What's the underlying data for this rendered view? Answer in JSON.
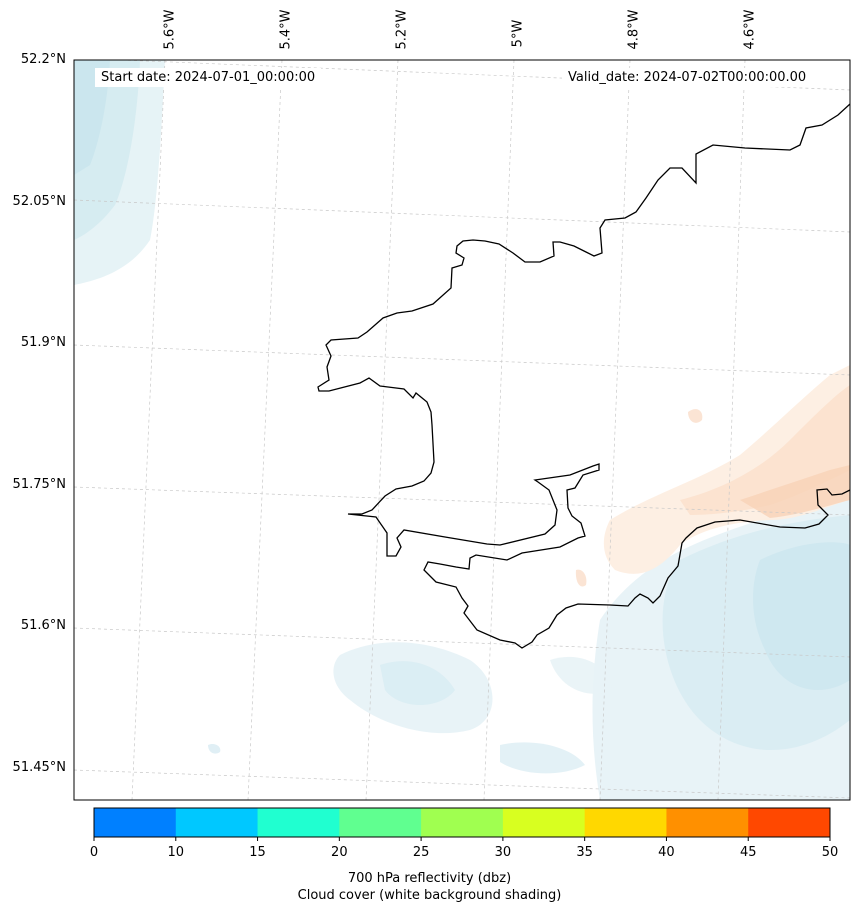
{
  "map": {
    "start_date": "Start date: 2024-07-01_00:00:00",
    "valid_date": "Valid_date: 2024-07-02T00:00:00.00",
    "lon_labels": [
      "5.6°W",
      "5.4°W",
      "5.2°W",
      "5°W",
      "4.8°W",
      "4.6°W"
    ],
    "lat_labels": [
      "52.2°N",
      "52.05°N",
      "51.9°N",
      "51.75°N",
      "51.6°N",
      "51.45°N"
    ]
  },
  "colorbar": {
    "ticks": [
      "0",
      "10",
      "15",
      "20",
      "25",
      "30",
      "35",
      "40",
      "45",
      "50"
    ],
    "colors": [
      "#0080ff",
      "#00c8ff",
      "#20ffd0",
      "#60ff90",
      "#a0ff50",
      "#d8ff20",
      "#ffd800",
      "#ff9000",
      "#ff4800"
    ],
    "title_line1": "700 hPa reflectivity (dbz)",
    "title_line2": "Cloud cover (white background shading)"
  }
}
